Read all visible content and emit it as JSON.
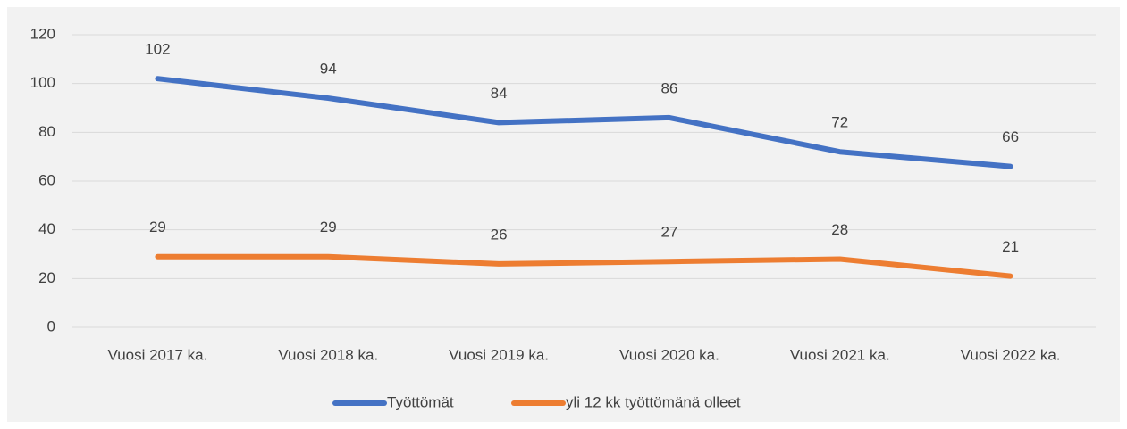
{
  "chart_data": {
    "type": "line",
    "categories": [
      "Vuosi 2017 ka.",
      "Vuosi 2018 ka.",
      "Vuosi 2019 ka.",
      "Vuosi 2020 ka.",
      "Vuosi 2021 ka.",
      "Vuosi 2022 ka."
    ],
    "series": [
      {
        "name": "Työttömät",
        "color": "#4472c4",
        "values": [
          102,
          94,
          84,
          86,
          72,
          66
        ]
      },
      {
        "name": "yli 12 kk työttömänä olleet",
        "color": "#ed7d31",
        "values": [
          29,
          29,
          26,
          27,
          28,
          21
        ]
      }
    ],
    "ylim": [
      0,
      120
    ],
    "yticks": [
      0,
      20,
      40,
      60,
      80,
      100,
      120
    ],
    "grid": true,
    "legend": "bottom"
  }
}
